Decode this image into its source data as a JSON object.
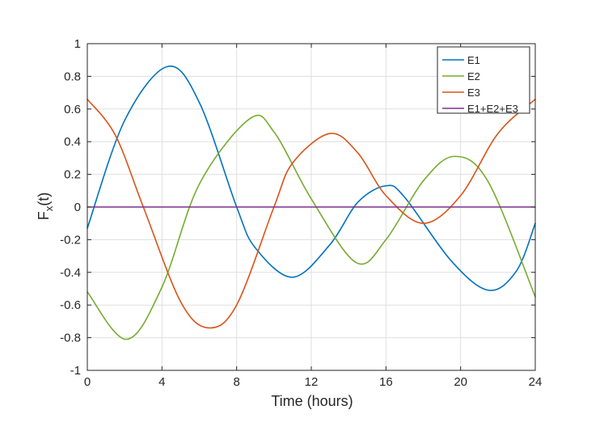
{
  "colors": {
    "e1": "#0072BD",
    "e2": "#77AC30",
    "e3": "#D95319",
    "sum": "#7E2F8E",
    "grid": "#DFDFDF",
    "axis": "#262626"
  },
  "chart_data": {
    "type": "line",
    "title": "",
    "xlabel": "Time (hours)",
    "ylabel_main": "F",
    "ylabel_sub": "x",
    "ylabel_tail": "(t)",
    "xlim": [
      0,
      24
    ],
    "ylim": [
      -1,
      1
    ],
    "grid": true,
    "legend_position": "top-right",
    "x_ticks": [
      0,
      4,
      8,
      12,
      16,
      20,
      24
    ],
    "y_ticks": [
      -1,
      -0.8,
      -0.6,
      -0.4,
      -0.2,
      0,
      0.2,
      0.4,
      0.6,
      0.8,
      1
    ],
    "x_tick_labels": [
      "0",
      "4",
      "8",
      "12",
      "16",
      "20",
      "24"
    ],
    "y_tick_labels": [
      "-1",
      "-0.8",
      "-0.6",
      "-0.4",
      "-0.2",
      "0",
      "0.2",
      "0.4",
      "0.6",
      "0.8",
      "1"
    ],
    "series": [
      {
        "name": "E1",
        "color": "#0072BD",
        "x": [
          0,
          2,
          4.3,
          6,
          8,
          9,
          11,
          13,
          14.5,
          16,
          17,
          19.5,
          21.5,
          23,
          24
        ],
        "y": [
          -0.13,
          0.53,
          0.86,
          0.64,
          0.0,
          -0.25,
          -0.43,
          -0.23,
          0.03,
          0.13,
          0.06,
          -0.33,
          -0.51,
          -0.39,
          -0.1
        ]
      },
      {
        "name": "E2",
        "color": "#77AC30",
        "x": [
          0,
          2.1,
          4,
          6,
          8.7,
          10,
          12,
          14.4,
          16,
          18,
          19.7,
          21.5,
          24
        ],
        "y": [
          -0.52,
          -0.81,
          -0.49,
          0.14,
          0.54,
          0.46,
          0.05,
          -0.34,
          -0.2,
          0.16,
          0.31,
          0.15,
          -0.55
        ]
      },
      {
        "name": "E3",
        "color": "#D95319",
        "x": [
          0,
          1.5,
          3,
          5,
          6.5,
          8,
          10,
          11,
          13,
          14.5,
          16,
          18,
          20,
          22,
          24
        ],
        "y": [
          0.66,
          0.44,
          0.0,
          -0.58,
          -0.74,
          -0.6,
          0.0,
          0.27,
          0.45,
          0.33,
          0.07,
          -0.1,
          0.07,
          0.45,
          0.66
        ]
      },
      {
        "name": "E1+E2+E3",
        "color": "#7E2F8E",
        "x": [
          0,
          24
        ],
        "y": [
          0,
          0
        ]
      }
    ]
  }
}
